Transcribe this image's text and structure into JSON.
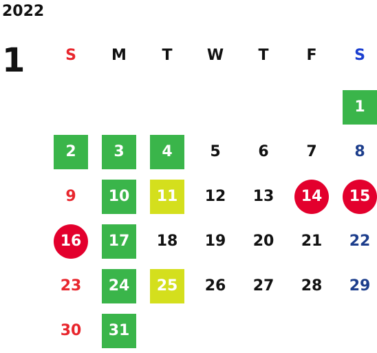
{
  "year": "2022",
  "month": "1",
  "weekdays": [
    {
      "label": "S",
      "color": "#e8262d"
    },
    {
      "label": "M",
      "color": "#111111"
    },
    {
      "label": "T",
      "color": "#111111"
    },
    {
      "label": "W",
      "color": "#111111"
    },
    {
      "label": "T",
      "color": "#111111"
    },
    {
      "label": "F",
      "color": "#111111"
    },
    {
      "label": "S",
      "color": "#1b3fd0"
    }
  ],
  "colors": {
    "green": "#3ab54a",
    "lime": "#d4df1d",
    "red": "#e3002d",
    "sunday_text": "#e8262d",
    "saturday_text": "#1d3e8c",
    "default_text": "#111111",
    "on_fill_text": "#ffffff"
  },
  "weeks": [
    [
      null,
      null,
      null,
      null,
      null,
      null,
      {
        "d": "1",
        "style": "green"
      }
    ],
    [
      {
        "d": "2",
        "style": "green"
      },
      {
        "d": "3",
        "style": "green"
      },
      {
        "d": "4",
        "style": "green"
      },
      {
        "d": "5"
      },
      {
        "d": "6"
      },
      {
        "d": "7"
      },
      {
        "d": "8"
      }
    ],
    [
      {
        "d": "9"
      },
      {
        "d": "10",
        "style": "green"
      },
      {
        "d": "11",
        "style": "lime"
      },
      {
        "d": "12"
      },
      {
        "d": "13"
      },
      {
        "d": "14",
        "style": "red"
      },
      {
        "d": "15",
        "style": "red"
      }
    ],
    [
      {
        "d": "16",
        "style": "red"
      },
      {
        "d": "17",
        "style": "green"
      },
      {
        "d": "18"
      },
      {
        "d": "19"
      },
      {
        "d": "20"
      },
      {
        "d": "21"
      },
      {
        "d": "22"
      }
    ],
    [
      {
        "d": "23"
      },
      {
        "d": "24",
        "style": "green"
      },
      {
        "d": "25",
        "style": "lime"
      },
      {
        "d": "26"
      },
      {
        "d": "27"
      },
      {
        "d": "28"
      },
      {
        "d": "29"
      }
    ],
    [
      {
        "d": "30"
      },
      {
        "d": "31",
        "style": "green"
      },
      null,
      null,
      null,
      null,
      null
    ]
  ]
}
